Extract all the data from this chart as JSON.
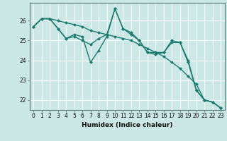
{
  "xlabel": "Humidex (Indice chaleur)",
  "background_color": "#cce8e6",
  "grid_color": "#ffffff",
  "line_color": "#1a7a6e",
  "series": [
    [
      25.7,
      26.1,
      26.1,
      25.6,
      25.1,
      25.3,
      25.2,
      23.9,
      24.5,
      25.2,
      26.6,
      25.6,
      25.4,
      25.0,
      24.4,
      24.4,
      24.4,
      24.9,
      24.9,
      24.0,
      22.5,
      22.0,
      21.9,
      21.6
    ],
    [
      25.7,
      26.1,
      26.1,
      26.0,
      25.9,
      25.8,
      25.7,
      25.5,
      25.4,
      25.3,
      25.2,
      25.1,
      25.0,
      24.8,
      24.6,
      24.4,
      24.2,
      23.9,
      23.6,
      23.2,
      22.8,
      22.0,
      21.9,
      21.6
    ],
    [
      25.7,
      26.1,
      26.1,
      25.6,
      25.1,
      25.2,
      25.0,
      24.8,
      25.1,
      25.3,
      26.6,
      25.6,
      25.3,
      25.0,
      24.4,
      24.3,
      24.4,
      25.0,
      24.9,
      23.9,
      22.5,
      22.0,
      21.9,
      21.6
    ]
  ],
  "xlim": [
    -0.5,
    23.5
  ],
  "ylim": [
    21.5,
    26.9
  ],
  "yticks": [
    22,
    23,
    24,
    25,
    26
  ],
  "xticks": [
    0,
    1,
    2,
    3,
    4,
    5,
    6,
    7,
    8,
    9,
    10,
    11,
    12,
    13,
    14,
    15,
    16,
    17,
    18,
    19,
    20,
    21,
    22,
    23
  ],
  "xtick_labels": [
    "0",
    "1",
    "2",
    "3",
    "4",
    "5",
    "6",
    "7",
    "8",
    "9",
    "10",
    "11",
    "12",
    "13",
    "14",
    "15",
    "16",
    "17",
    "18",
    "19",
    "20",
    "21",
    "22",
    "23"
  ],
  "tick_fontsize": 5.5,
  "label_fontsize": 6.5,
  "linewidth": 1.0,
  "marker": "D",
  "markersize": 2.0
}
